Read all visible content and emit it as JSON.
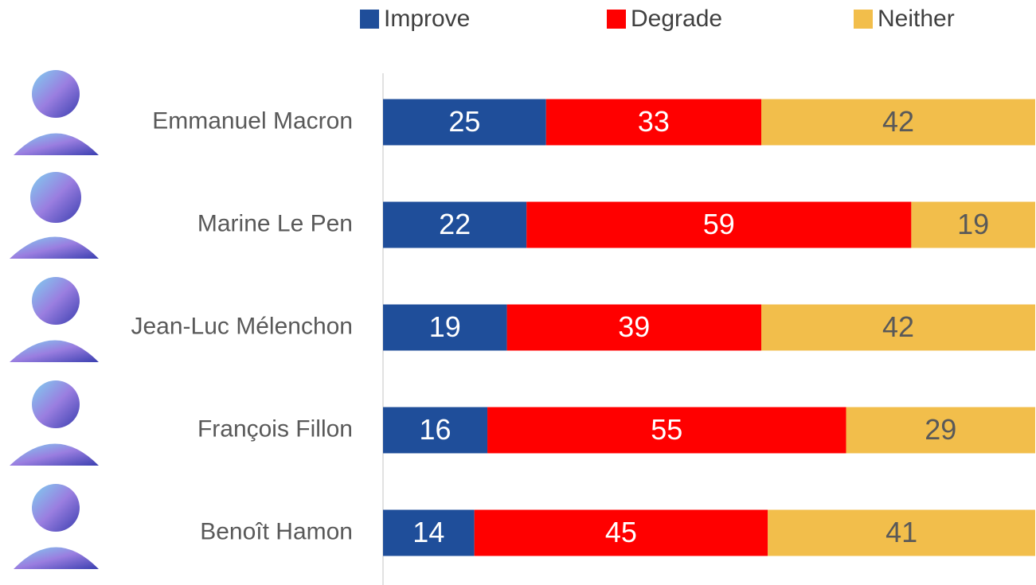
{
  "chart_data": {
    "type": "stacked-bar",
    "orientation": "horizontal",
    "categories": [
      "Emmanuel Macron",
      "Marine Le Pen",
      "Jean-Luc Mélenchon",
      "François Fillon",
      "Benoît Hamon"
    ],
    "series": [
      {
        "name": "Improve",
        "color": "#1f4e9a",
        "label_color": "#ffffff",
        "values": [
          25,
          22,
          19,
          16,
          14
        ]
      },
      {
        "name": "Degrade",
        "color": "#ff0000",
        "label_color": "#ffffff",
        "values": [
          33,
          59,
          39,
          55,
          45
        ]
      },
      {
        "name": "Neither",
        "color": "#f2be4b",
        "label_color": "#595959",
        "values": [
          42,
          19,
          42,
          29,
          41
        ]
      }
    ],
    "xlim": [
      0,
      100
    ],
    "legend": "top"
  }
}
